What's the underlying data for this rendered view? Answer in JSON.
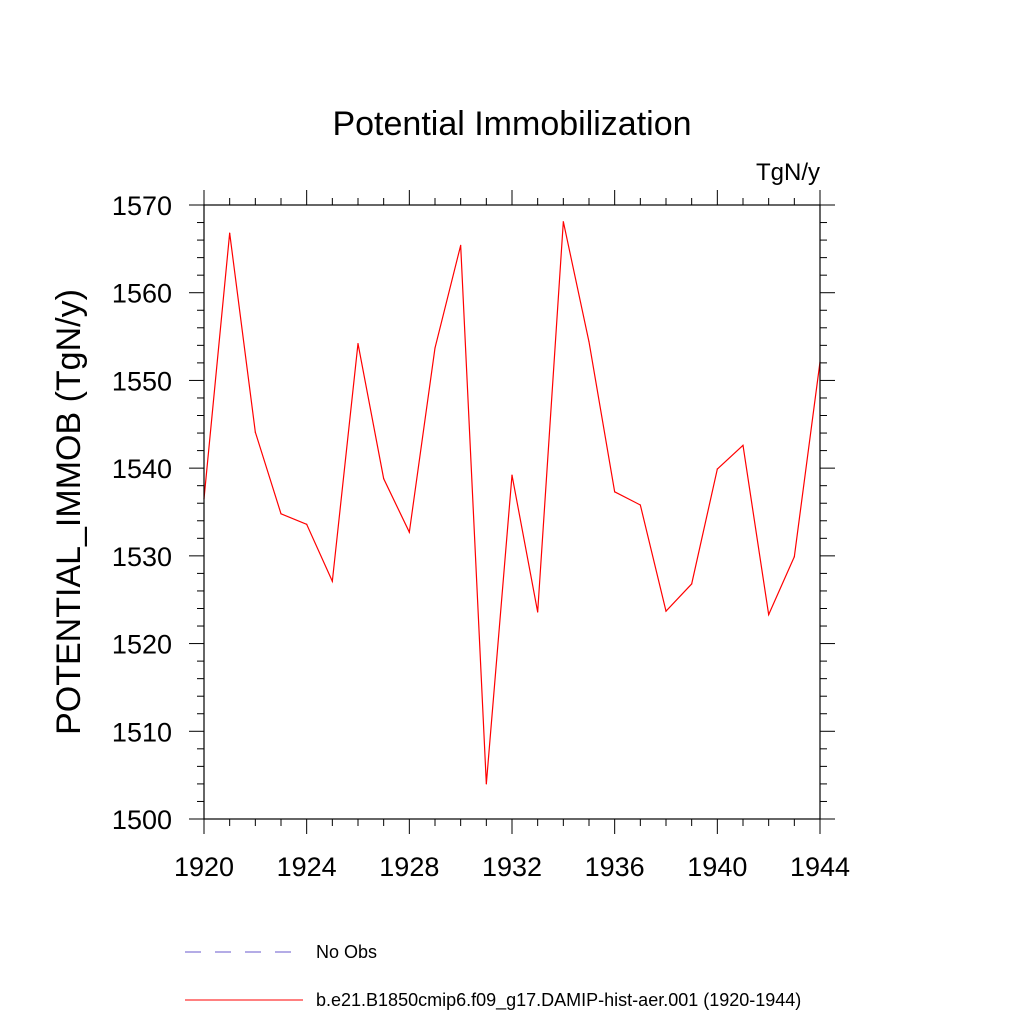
{
  "chart_data": {
    "type": "line",
    "title": "Potential Immobilization",
    "units_label": "TgN/y",
    "xlabel": "",
    "ylabel": "POTENTIAL_IMMOB  (TgN/y)",
    "xlim": [
      1920,
      1944
    ],
    "ylim": [
      1500,
      1570
    ],
    "x_ticks": [
      1920,
      1924,
      1928,
      1932,
      1936,
      1940,
      1944
    ],
    "y_ticks": [
      1500,
      1510,
      1520,
      1530,
      1540,
      1550,
      1560,
      1570
    ],
    "grid": false,
    "legend_position": "bottom",
    "x": [
      1920,
      1921,
      1922,
      1923,
      1924,
      1925,
      1926,
      1927,
      1928,
      1929,
      1930,
      1931,
      1932,
      1933,
      1934,
      1935,
      1936,
      1937,
      1938,
      1939,
      1940,
      1941,
      1942,
      1943,
      1944
    ],
    "series": [
      {
        "name": "b.e21.B1850cmip6.f09_g17.DAMIP-hist-aer.001 (1920-1944)",
        "color": "#ff0000",
        "style": "solid",
        "values": [
          1536.5,
          1566.8,
          1544.1,
          1534.8,
          1533.6,
          1527.1,
          1554.2,
          1538.8,
          1532.7,
          1553.7,
          1565.4,
          1504.0,
          1539.2,
          1523.6,
          1568.1,
          1554.4,
          1537.3,
          1535.8,
          1523.7,
          1526.8,
          1539.9,
          1542.6,
          1523.3,
          1529.9,
          1552.1
        ]
      }
    ],
    "legend": [
      {
        "label": "No Obs",
        "color": "#6a5acd",
        "style": "dashed"
      },
      {
        "label": "b.e21.B1850cmip6.f09_g17.DAMIP-hist-aer.001 (1920-1944)",
        "color": "#ff0000",
        "style": "solid"
      }
    ]
  }
}
